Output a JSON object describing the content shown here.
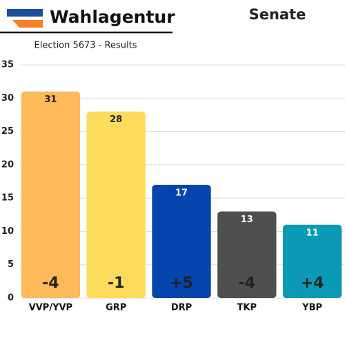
{
  "chart_data": {
    "type": "bar",
    "title": "Wahlagentur",
    "chamber": "Senate",
    "subtitle": "Election 5673 - Results",
    "categories": [
      "VVP/YVP",
      "GRP",
      "DRP",
      "TKP",
      "YBP"
    ],
    "values": [
      31,
      28,
      17,
      13,
      11
    ],
    "colors": [
      "#fdb95a",
      "#fddc5c",
      "#0645ad",
      "#4f4f4f",
      "#0a9ab5"
    ],
    "change_labels": [
      "-4",
      "-1",
      "+5",
      "-4",
      "+4"
    ],
    "ylim": [
      0,
      35
    ],
    "yticks": [
      0,
      5,
      10,
      15,
      20,
      25,
      30,
      35
    ],
    "grid": true
  }
}
